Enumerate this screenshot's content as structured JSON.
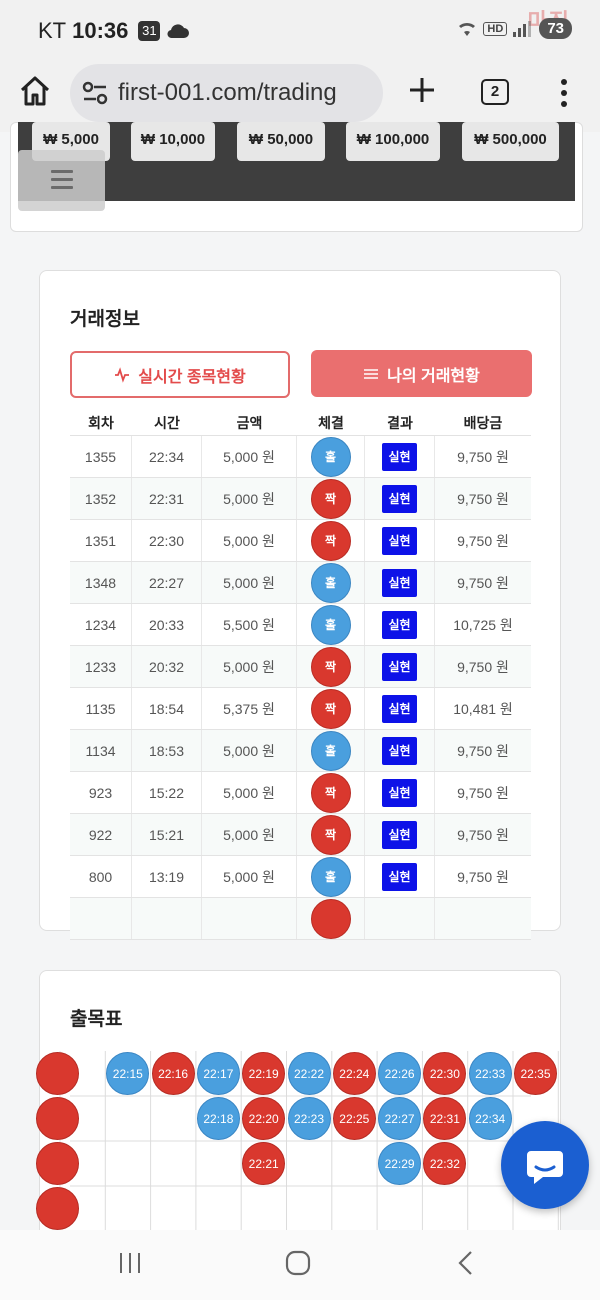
{
  "status": {
    "carrier": "KT",
    "time": "10:36",
    "notif_icon": "calendar-31-icon",
    "hd_label": "HD",
    "battery": "73",
    "watermark": "마짐"
  },
  "browser": {
    "url": "first-001.com/trading",
    "tab_count": "2"
  },
  "amounts": [
    "₩ 5,000",
    "₩ 10,000",
    "₩ 50,000",
    "₩ 100,000",
    "₩ 500,000"
  ],
  "trade_info": {
    "title": "거래정보",
    "tab_live": "실시간 종목현황",
    "tab_mine": "나의 거래현황",
    "headers": [
      "회차",
      "시간",
      "금액",
      "체결",
      "결과",
      "배당금"
    ],
    "rows": [
      {
        "round": "1355",
        "time": "22:34",
        "amount": "5,000 원",
        "pick": "홀",
        "pick_type": "odd",
        "result": "실현",
        "payout": "9,750 원"
      },
      {
        "round": "1352",
        "time": "22:31",
        "amount": "5,000 원",
        "pick": "짝",
        "pick_type": "even",
        "result": "실현",
        "payout": "9,750 원"
      },
      {
        "round": "1351",
        "time": "22:30",
        "amount": "5,000 원",
        "pick": "짝",
        "pick_type": "even",
        "result": "실현",
        "payout": "9,750 원"
      },
      {
        "round": "1348",
        "time": "22:27",
        "amount": "5,000 원",
        "pick": "홀",
        "pick_type": "odd",
        "result": "실현",
        "payout": "9,750 원"
      },
      {
        "round": "1234",
        "time": "20:33",
        "amount": "5,500 원",
        "pick": "홀",
        "pick_type": "odd",
        "result": "실현",
        "payout": "10,725 원"
      },
      {
        "round": "1233",
        "time": "20:32",
        "amount": "5,000 원",
        "pick": "짝",
        "pick_type": "even",
        "result": "실현",
        "payout": "9,750 원"
      },
      {
        "round": "1135",
        "time": "18:54",
        "amount": "5,375 원",
        "pick": "짝",
        "pick_type": "even",
        "result": "실현",
        "payout": "10,481 원"
      },
      {
        "round": "1134",
        "time": "18:53",
        "amount": "5,000 원",
        "pick": "홀",
        "pick_type": "odd",
        "result": "실현",
        "payout": "9,750 원"
      },
      {
        "round": "923",
        "time": "15:22",
        "amount": "5,000 원",
        "pick": "짝",
        "pick_type": "even",
        "result": "실현",
        "payout": "9,750 원"
      },
      {
        "round": "922",
        "time": "15:21",
        "amount": "5,000 원",
        "pick": "짝",
        "pick_type": "even",
        "result": "실현",
        "payout": "9,750 원"
      },
      {
        "round": "800",
        "time": "13:19",
        "amount": "5,000 원",
        "pick": "홀",
        "pick_type": "odd",
        "result": "실현",
        "payout": "9,750 원"
      },
      {
        "round": "",
        "time": "",
        "amount": "",
        "pick": "",
        "pick_type": "even",
        "result": "",
        "payout": ""
      }
    ]
  },
  "result_board": {
    "title": "출목표",
    "columns": [
      {
        "type": "even",
        "labels": [
          "",
          "",
          "",
          ""
        ]
      },
      {
        "type": "odd",
        "labels": [
          "22:15"
        ]
      },
      {
        "type": "even",
        "labels": [
          "22:16"
        ]
      },
      {
        "type": "odd",
        "labels": [
          "22:17",
          "22:18"
        ]
      },
      {
        "type": "even",
        "labels": [
          "22:19",
          "22:20",
          "22:21"
        ]
      },
      {
        "type": "odd",
        "labels": [
          "22:22",
          "22:23"
        ]
      },
      {
        "type": "even",
        "labels": [
          "22:24",
          "22:25"
        ]
      },
      {
        "type": "odd",
        "labels": [
          "22:26",
          "22:27",
          "22:29"
        ]
      },
      {
        "type": "even",
        "labels": [
          "22:30",
          "22:31",
          "22:32"
        ]
      },
      {
        "type": "odd",
        "labels": [
          "22:33",
          "22:34"
        ]
      },
      {
        "type": "even",
        "labels": [
          "22:35"
        ]
      }
    ]
  },
  "colors": {
    "odd": "#4a9fde",
    "even": "#d9382e",
    "badge": "#0d12e8",
    "accent": "#ea6f6f",
    "fab": "#1b5fd1"
  }
}
